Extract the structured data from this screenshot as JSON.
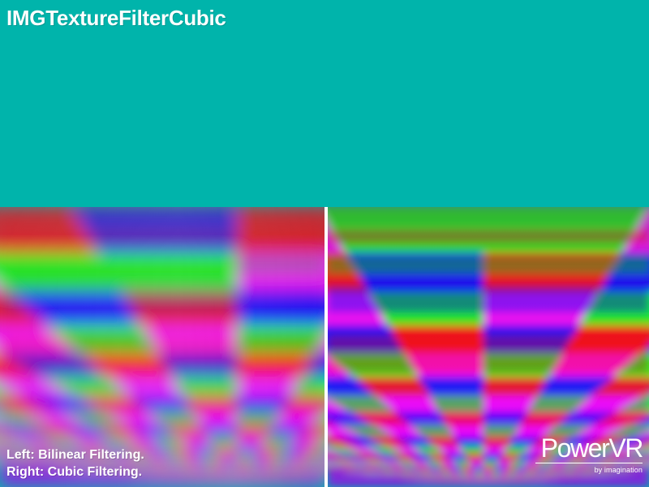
{
  "window": {
    "title": "IMGTextureFilterCubic"
  },
  "caption": {
    "left": "Left: Bilinear Filtering.",
    "right": "Right: Cubic Filtering."
  },
  "logo": {
    "brand": "PowerVR",
    "tagline": "by imagination"
  },
  "colors": {
    "background": "#00b4ab",
    "red": "#ff0000",
    "green": "#00ff00",
    "blue": "#0000ff",
    "magenta": "#ff00ff",
    "divider": "#ffffff"
  }
}
